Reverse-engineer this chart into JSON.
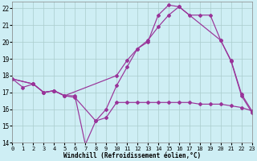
{
  "background_color": "#ceeef4",
  "grid_color": "#aacccc",
  "line_color": "#993399",
  "xlabel": "Windchill (Refroidissement éolien,°C)",
  "xlim": [
    0,
    23
  ],
  "ylim": [
    14,
    22.4
  ],
  "yticks": [
    14,
    15,
    16,
    17,
    18,
    19,
    20,
    21,
    22
  ],
  "xticks": [
    0,
    1,
    2,
    3,
    4,
    5,
    6,
    7,
    8,
    9,
    10,
    11,
    12,
    13,
    14,
    15,
    16,
    17,
    18,
    19,
    20,
    21,
    22,
    23
  ],
  "curve1_x": [
    0,
    1,
    2,
    3,
    4,
    5,
    6,
    7,
    8,
    9,
    10,
    11,
    12,
    13,
    14,
    15,
    16,
    20,
    21,
    22,
    23
  ],
  "curve1_y": [
    17.8,
    17.3,
    17.5,
    17.0,
    17.1,
    16.8,
    16.8,
    13.9,
    15.3,
    16.0,
    17.4,
    18.5,
    19.6,
    20.0,
    21.6,
    22.2,
    22.1,
    20.1,
    18.9,
    16.9,
    15.9
  ],
  "curve2_x": [
    0,
    2,
    3,
    4,
    5,
    10,
    11,
    12,
    13,
    14,
    15,
    16,
    17,
    18,
    19,
    20,
    21,
    22,
    23
  ],
  "curve2_y": [
    17.8,
    17.5,
    17.0,
    17.1,
    16.8,
    18.0,
    18.9,
    19.6,
    20.1,
    20.9,
    21.6,
    22.1,
    21.6,
    21.6,
    21.6,
    20.1,
    18.85,
    16.8,
    15.8
  ],
  "curve3_x": [
    0,
    2,
    3,
    4,
    5,
    6,
    8,
    9,
    10,
    11,
    12,
    13,
    14,
    15,
    16,
    17,
    18,
    19,
    20,
    21,
    22,
    23
  ],
  "curve3_y": [
    17.8,
    17.5,
    17.0,
    17.1,
    16.8,
    16.7,
    15.3,
    15.5,
    16.4,
    16.4,
    16.4,
    16.4,
    16.4,
    16.4,
    16.4,
    16.4,
    16.3,
    16.3,
    16.3,
    16.2,
    16.1,
    15.9
  ]
}
